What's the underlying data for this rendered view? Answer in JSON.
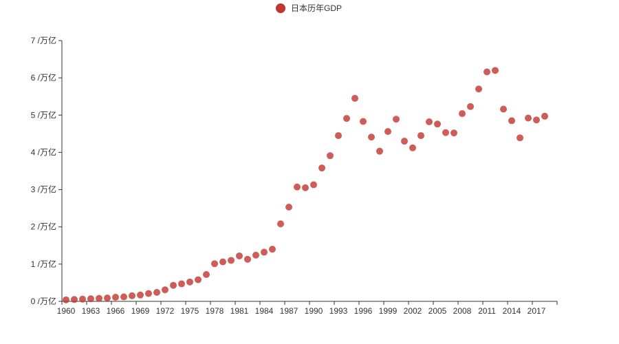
{
  "chart_data": {
    "type": "scatter",
    "title": "",
    "legend": {
      "label": "日本历年GDP",
      "position": "top-center"
    },
    "colors": {
      "point": "#c23531",
      "axis": "#333333",
      "text": "#333333"
    },
    "x_axis": {
      "tick_labels": [
        "1960",
        "1963",
        "1966",
        "1969",
        "1972",
        "1975",
        "1978",
        "1981",
        "1984",
        "1987",
        "1990",
        "1993",
        "1996",
        "1999",
        "2002",
        "2005",
        "2008",
        "2011",
        "2014",
        "2017"
      ],
      "range": [
        1960,
        2019
      ]
    },
    "y_axis": {
      "tick_labels": [
        "0 /万亿",
        "1 /万亿",
        "2 /万亿",
        "3 /万亿",
        "4 /万亿",
        "5 /万亿",
        "6 /万亿",
        "7 /万亿"
      ],
      "range": [
        0,
        7
      ],
      "unit": "万亿"
    },
    "series": [
      {
        "name": "日本历年GDP",
        "points": [
          [
            1960,
            0.04
          ],
          [
            1961,
            0.05
          ],
          [
            1962,
            0.06
          ],
          [
            1963,
            0.07
          ],
          [
            1964,
            0.08
          ],
          [
            1965,
            0.09
          ],
          [
            1966,
            0.11
          ],
          [
            1967,
            0.12
          ],
          [
            1968,
            0.15
          ],
          [
            1969,
            0.17
          ],
          [
            1970,
            0.21
          ],
          [
            1971,
            0.24
          ],
          [
            1972,
            0.31
          ],
          [
            1973,
            0.43
          ],
          [
            1974,
            0.47
          ],
          [
            1975,
            0.52
          ],
          [
            1976,
            0.58
          ],
          [
            1977,
            0.72
          ],
          [
            1978,
            1.01
          ],
          [
            1979,
            1.06
          ],
          [
            1980,
            1.1
          ],
          [
            1981,
            1.22
          ],
          [
            1982,
            1.13
          ],
          [
            1983,
            1.24
          ],
          [
            1984,
            1.32
          ],
          [
            1985,
            1.4
          ],
          [
            1986,
            2.08
          ],
          [
            1987,
            2.53
          ],
          [
            1988,
            3.07
          ],
          [
            1989,
            3.05
          ],
          [
            1990,
            3.13
          ],
          [
            1991,
            3.58
          ],
          [
            1992,
            3.91
          ],
          [
            1993,
            4.45
          ],
          [
            1994,
            4.91
          ],
          [
            1995,
            5.45
          ],
          [
            1996,
            4.83
          ],
          [
            1997,
            4.41
          ],
          [
            1998,
            4.03
          ],
          [
            1999,
            4.56
          ],
          [
            2000,
            4.89
          ],
          [
            2001,
            4.3
          ],
          [
            2002,
            4.12
          ],
          [
            2003,
            4.45
          ],
          [
            2004,
            4.82
          ],
          [
            2005,
            4.76
          ],
          [
            2006,
            4.53
          ],
          [
            2007,
            4.52
          ],
          [
            2008,
            5.04
          ],
          [
            2009,
            5.23
          ],
          [
            2010,
            5.7
          ],
          [
            2011,
            6.16
          ],
          [
            2012,
            6.2
          ],
          [
            2013,
            5.16
          ],
          [
            2014,
            4.85
          ],
          [
            2015,
            4.39
          ],
          [
            2016,
            4.92
          ],
          [
            2017,
            4.87
          ],
          [
            2018,
            4.97
          ]
        ]
      }
    ]
  }
}
